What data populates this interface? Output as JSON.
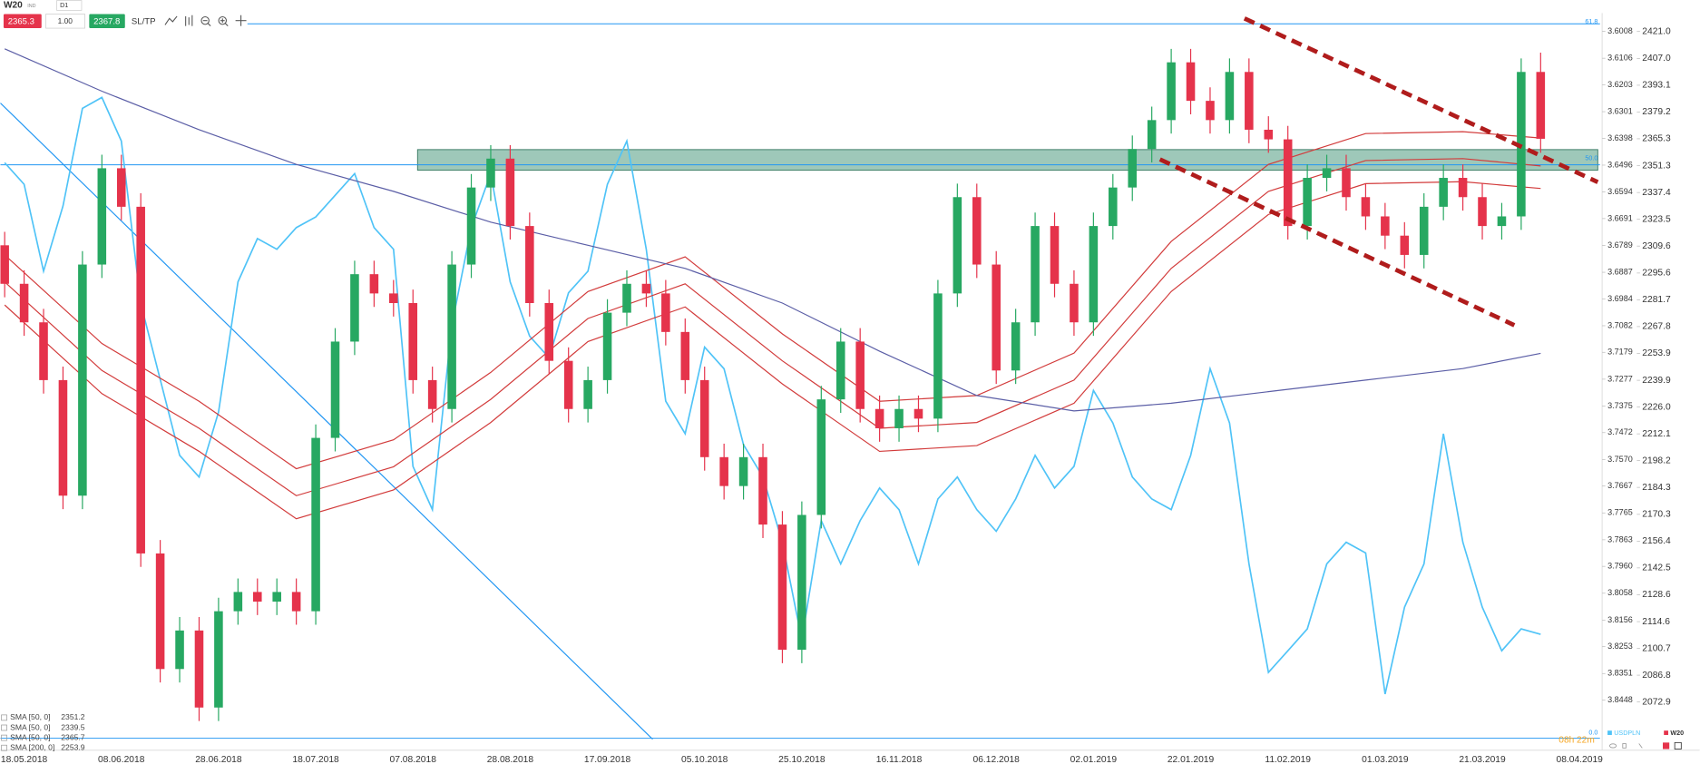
{
  "chart_data": {
    "type": "candlestick",
    "symbol_type": "IND",
    "timeframe": "D1",
    "volume": "1.00",
    "ask": 2367.8,
    "sltp": "SL/TP",
    "countdown": "08h 22m",
    "fib_labels": [
      "61.8",
      "50.0",
      "0.0"
    ],
    "categories": [
      null,
      "18.05.2018",
      null,
      null,
      null,
      null,
      "08.06.2018",
      null,
      null,
      null,
      null,
      "28.06.2018",
      null,
      null,
      null,
      null,
      "18.07.2018",
      null,
      null,
      null,
      null,
      "07.08.2018",
      null,
      null,
      null,
      null,
      "28.08.2018",
      null,
      null,
      null,
      null,
      "17.09.2018",
      null,
      null,
      null,
      null,
      "05.10.2018",
      null,
      null,
      null,
      null,
      "25.10.2018",
      null,
      null,
      null,
      null,
      "16.11.2018",
      null,
      null,
      null,
      null,
      "06.12.2018",
      null,
      null,
      null,
      null,
      "02.01.2019",
      null,
      null,
      null,
      null,
      "22.01.2019",
      null,
      null,
      null,
      null,
      "11.02.2019",
      null,
      null,
      null,
      null,
      "01.03.2019",
      null,
      null,
      null,
      null,
      "21.03.2019",
      null,
      null,
      null,
      null,
      "08.04.2019"
    ],
    "ylim": [
      2053.5,
      2430.6
    ],
    "yticks": [
      {
        "value": 2421,
        "label": "2421.0"
      },
      {
        "value": 2407,
        "label": "2407.0"
      },
      2393.1,
      2379.2,
      2365.3,
      2351.3,
      2337.4,
      2323.5,
      2309.6,
      2295.6,
      2281.7,
      2267.8,
      2253.9,
      2239.9,
      {
        "value": 2226,
        "label": "2226.0"
      },
      2212.1,
      2198.2,
      2184.3,
      2170.3,
      2156.4,
      2142.5,
      2128.6,
      2114.6,
      2100.7,
      2086.8,
      2072.9
    ],
    "y2lim": [
      3.8591,
      3.5941
    ],
    "y2ticks": [
      3.6008,
      3.6106,
      3.6203,
      3.6301,
      3.6398,
      3.6496,
      3.6594,
      3.6691,
      3.6789,
      3.6887,
      3.6984,
      3.7082,
      3.7179,
      3.7277,
      3.7375,
      3.7472,
      {
        "value": 3.757,
        "label": "3.7570"
      },
      3.7667,
      3.7765,
      3.7863,
      {
        "value": 3.796,
        "label": "3.7960"
      },
      3.8058,
      3.8156,
      3.8253,
      3.8351,
      3.8448
    ],
    "grid": false,
    "series": [
      {
        "name": "W20",
        "type": "candlestick",
        "up_color": "#27a862",
        "down_color": "#e5334b",
        "open": [
          2310,
          2290,
          2270,
          2240,
          2180,
          2300,
          2350,
          2330,
          2150,
          2090,
          2110,
          2070,
          2120,
          2130,
          2125,
          2130,
          2120,
          2210,
          2260,
          2295,
          2285,
          2280,
          2240,
          2225,
          2300,
          2340,
          2355,
          2320,
          2280,
          2250,
          2225,
          2240,
          2275,
          2290,
          2285,
          2265,
          2240,
          2200,
          2185,
          2200,
          2165,
          2100,
          2170,
          2230,
          2260,
          2225,
          2215,
          2225,
          2220,
          2285,
          2335,
          2300,
          2245,
          2270,
          2320,
          2290,
          2270,
          2320,
          2340,
          2360,
          2375,
          2405,
          2385,
          2375,
          2400,
          2370,
          2365,
          2320,
          2345,
          2350,
          2335,
          2325,
          2315,
          2305,
          2330,
          2345,
          2335,
          2320,
          2325,
          2400,
          null,
          null
        ],
        "high": [
          2317,
          2297,
          2277,
          2247,
          2307,
          2357,
          2357,
          2337,
          2157,
          2117,
          2117,
          2127,
          2137,
          2137,
          2137,
          2137,
          2217,
          2267,
          2302,
          2302,
          2292,
          2287,
          2247,
          2307,
          2347,
          2362,
          2362,
          2327,
          2287,
          2257,
          2247,
          2282,
          2297,
          2297,
          2292,
          2272,
          2247,
          2207,
          2207,
          2207,
          2172,
          2177,
          2237,
          2267,
          2267,
          2232,
          2232,
          2232,
          2292,
          2342,
          2342,
          2307,
          2277,
          2327,
          2327,
          2297,
          2327,
          2347,
          2367,
          2382,
          2412,
          2412,
          2392,
          2407,
          2407,
          2377,
          2372,
          2352,
          2357,
          2357,
          2342,
          2332,
          2322,
          2337,
          2352,
          2352,
          2342,
          2332,
          2407,
          2410,
          null,
          null
        ],
        "low": [
          2283,
          2263,
          2233,
          2173,
          2173,
          2293,
          2323,
          2143,
          2083,
          2083,
          2063,
          2063,
          2113,
          2118,
          2118,
          2113,
          2113,
          2203,
          2253,
          2278,
          2273,
          2233,
          2218,
          2218,
          2293,
          2333,
          2313,
          2273,
          2243,
          2218,
          2218,
          2233,
          2268,
          2278,
          2258,
          2233,
          2193,
          2178,
          2178,
          2158,
          2093,
          2093,
          2163,
          2223,
          2218,
          2208,
          2208,
          2213,
          2213,
          2278,
          2293,
          2238,
          2238,
          2263,
          2283,
          2263,
          2263,
          2313,
          2333,
          2353,
          2368,
          2378,
          2368,
          2368,
          2363,
          2358,
          2313,
          2313,
          2338,
          2328,
          2318,
          2308,
          2298,
          2298,
          2323,
          2328,
          2313,
          2313,
          2318,
          2358,
          null,
          null
        ],
        "close": [
          2290,
          2270,
          2240,
          2180,
          2300,
          2350,
          2330,
          2150,
          2090,
          2110,
          2070,
          2120,
          2130,
          2125,
          2130,
          2120,
          2210,
          2260,
          2295,
          2285,
          2280,
          2240,
          2225,
          2300,
          2340,
          2355,
          2320,
          2280,
          2250,
          2225,
          2240,
          2275,
          2290,
          2285,
          2265,
          2240,
          2200,
          2185,
          2200,
          2165,
          2100,
          2170,
          2230,
          2260,
          2225,
          2215,
          2225,
          2220,
          2285,
          2335,
          2300,
          2245,
          2270,
          2320,
          2290,
          2270,
          2320,
          2340,
          2360,
          2375,
          2405,
          2385,
          2375,
          2400,
          2370,
          2365,
          2320,
          2345,
          2350,
          2335,
          2325,
          2315,
          2305,
          2330,
          2345,
          2335,
          2320,
          2325,
          2400,
          2365.3,
          null,
          null
        ]
      },
      {
        "name": "USDPLN",
        "type": "line",
        "axis": "y2",
        "color": "#4fc3f7",
        "values": [
          3.6487,
          3.6566,
          3.6883,
          3.6645,
          3.6289,
          3.6249,
          3.6408,
          3.7001,
          3.7278,
          3.7555,
          3.7634,
          3.7397,
          3.6922,
          3.6764,
          3.6803,
          3.6724,
          3.6685,
          3.6606,
          3.6527,
          3.6724,
          3.6803,
          3.7595,
          3.7753,
          3.708,
          3.6724,
          3.6527,
          3.6922,
          3.712,
          3.7199,
          3.6962,
          3.6883,
          3.6566,
          3.6408,
          3.6803,
          3.7357,
          3.7476,
          3.716,
          3.7239,
          3.7516,
          3.7634,
          3.7872,
          3.8228,
          3.7793,
          3.7951,
          3.7793,
          3.7674,
          3.7753,
          3.7951,
          3.7714,
          3.7634,
          3.7753,
          3.7832,
          3.7714,
          3.7555,
          3.7674,
          3.7595,
          3.7318,
          3.7437,
          3.7634,
          3.7714,
          3.7753,
          3.7555,
          3.7239,
          3.7437,
          3.7951,
          3.8347,
          3.8268,
          3.8188,
          3.7951,
          3.7872,
          3.7911,
          3.8426,
          3.8109,
          3.7951,
          3.7476,
          3.7872,
          3.8109,
          3.8268,
          3.8188,
          3.8208,
          null,
          null
        ]
      }
    ],
    "indicators": [
      {
        "name": "SMA [50, 0]",
        "color": "#d23b3b",
        "x": [
          0,
          5,
          10,
          15,
          20,
          25,
          30,
          35,
          40,
          45,
          50,
          55,
          60,
          65,
          70,
          75,
          79
        ],
        "values": [
          2291,
          2245,
          2215,
          2180,
          2195,
          2230,
          2272,
          2290,
          2250,
          2215,
          2218,
          2240,
          2298,
          2338,
          2354,
          2355,
          2351.2
        ]
      },
      {
        "name": "SMA [50, 0]",
        "color": "#d23b3b",
        "x": [
          0,
          5,
          10,
          15,
          20,
          25,
          30,
          35,
          40,
          45,
          50,
          55,
          60,
          65,
          70,
          75,
          79
        ],
        "values": [
          2279,
          2233,
          2203,
          2168,
          2183,
          2218,
          2260,
          2278,
          2238,
          2203,
          2206,
          2228,
          2286,
          2326,
          2342,
          2343,
          2339.5
        ]
      },
      {
        "name": "SMA [50, 0]",
        "color": "#d23b3b",
        "x": [
          0,
          5,
          10,
          15,
          20,
          25,
          30,
          35,
          40,
          45,
          50,
          55,
          60,
          65,
          70,
          75,
          79
        ],
        "values": [
          2305,
          2259,
          2229,
          2194,
          2209,
          2244,
          2286,
          2304,
          2264,
          2229,
          2232,
          2254,
          2312,
          2352,
          2368,
          2369,
          2365.7
        ]
      },
      {
        "name": "SMA [200, 0]",
        "color": "#5b5ea6",
        "x": [
          0,
          5,
          10,
          15,
          20,
          25,
          30,
          35,
          40,
          45,
          50,
          55,
          60,
          65,
          70,
          75,
          79
        ],
        "values": [
          2412,
          2390,
          2370,
          2352,
          2338,
          2322,
          2310,
          2298,
          2280,
          2255,
          2232,
          2224,
          2228,
          2234,
          2240,
          2246,
          2253.9
        ]
      }
    ]
  }
}
